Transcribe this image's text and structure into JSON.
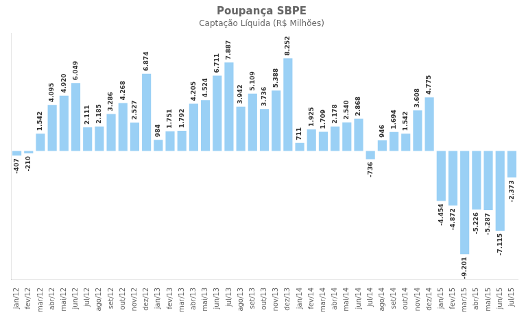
{
  "chart_data": {
    "type": "bar",
    "title": "Poupança SBPE",
    "subtitle": "Captação Líquida (R$ Milhões)",
    "categories": [
      "jan/12",
      "fev/12",
      "mar/12",
      "abr/12",
      "mai/12",
      "jun/12",
      "jul/12",
      "ago/12",
      "set/12",
      "out/12",
      "nov/12",
      "dez/12",
      "jan/13",
      "fev/13",
      "mar/13",
      "abr/13",
      "mai/13",
      "jun/13",
      "jul/13",
      "ago/13",
      "set/13",
      "out/13",
      "nov/13",
      "dez/13",
      "jan/14",
      "fev/14",
      "mar/14",
      "abr/14",
      "mai/14",
      "jun/14",
      "jul/14",
      "ago/14",
      "set/14",
      "out/14",
      "nov/14",
      "dez/14",
      "jan/15",
      "fev/15",
      "mar/15",
      "abr/15",
      "mai/15",
      "jun/15",
      "jul/15"
    ],
    "values": [
      -407,
      -210,
      1542,
      4095,
      4920,
      6049,
      2111,
      2185,
      3286,
      4268,
      2527,
      6874,
      984,
      1751,
      1792,
      4205,
      4524,
      6711,
      7887,
      3942,
      5109,
      3736,
      5388,
      8252,
      711,
      1925,
      1709,
      2178,
      2540,
      2868,
      -736,
      946,
      1694,
      1542,
      3608,
      4775,
      -4454,
      -4872,
      -9201,
      -5226,
      -5287,
      -7115,
      -2373
    ],
    "value_labels": [
      "-407",
      "-210",
      "1.542",
      "4.095",
      "4.920",
      "6.049",
      "2.111",
      "2.185",
      "3.286",
      "4.268",
      "2.527",
      "6.874",
      "984",
      "1.751",
      "1.792",
      "4.205",
      "4.524",
      "6.711",
      "7.887",
      "3.942",
      "5.109",
      "3.736",
      "5.388",
      "8.252",
      "711",
      "1.925",
      "1.709",
      "2.178",
      "2.540",
      "2.868",
      "-736",
      "946",
      "1.694",
      "1.542",
      "3.608",
      "4.775",
      "-4.454",
      "-4.872",
      "-9.201",
      "-5.226",
      "-5.287",
      "-7.115",
      "-2.373"
    ],
    "ylim": [
      -11500,
      10500
    ],
    "data_labels": true,
    "tick_labels": "x",
    "grid": false
  }
}
